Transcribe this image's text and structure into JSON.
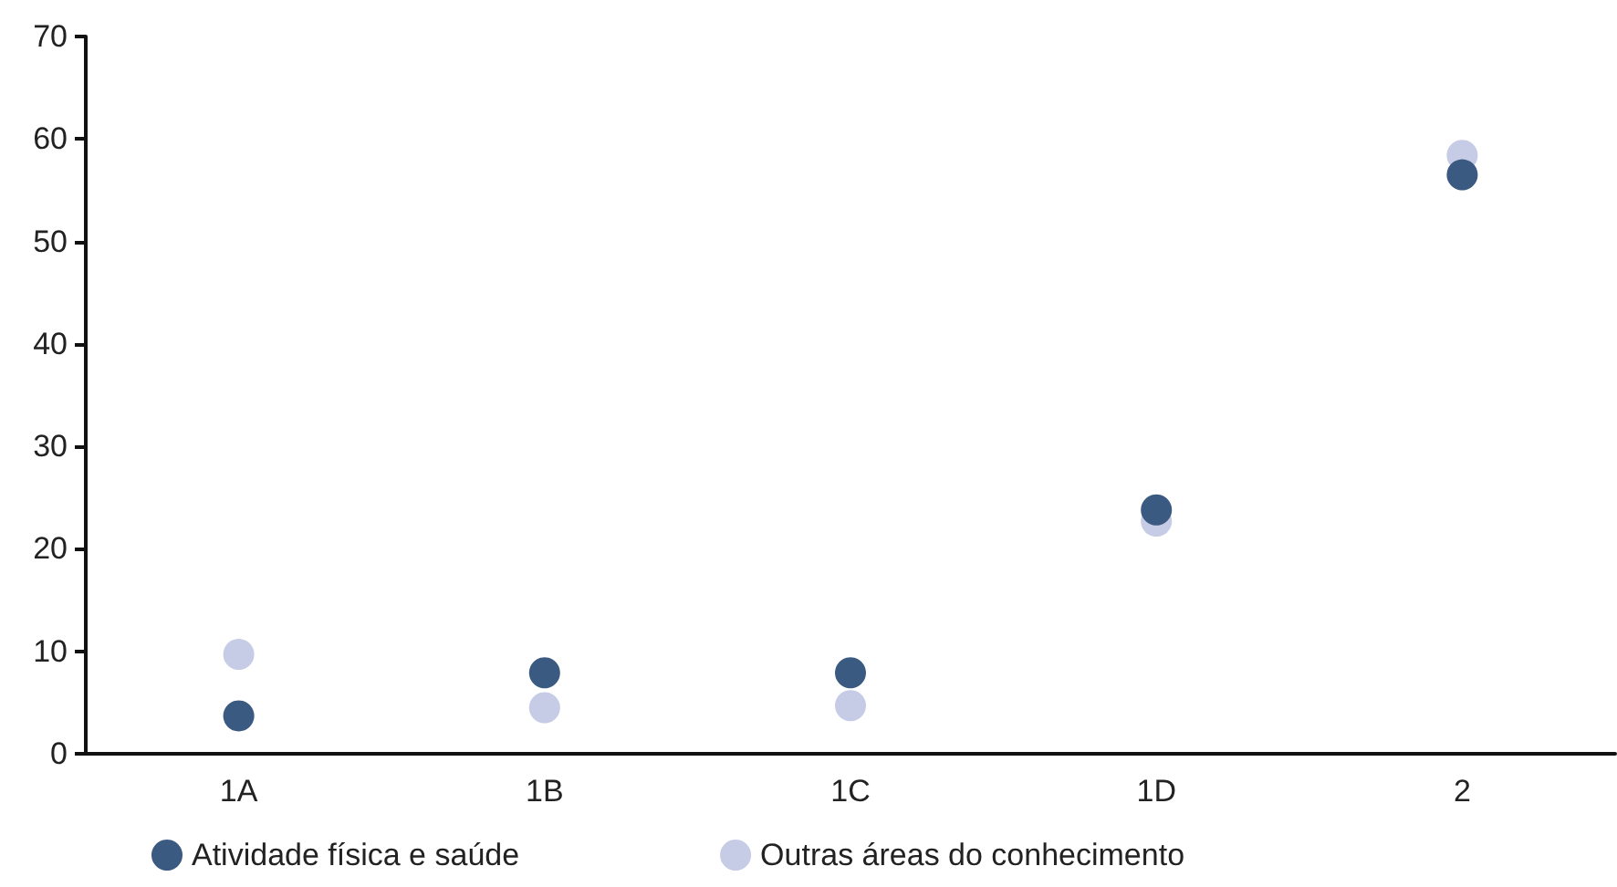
{
  "chart_data": {
    "type": "scatter",
    "categories": [
      "1A",
      "1B",
      "1C",
      "1D",
      "2"
    ],
    "series": [
      {
        "name": "Atividade física e saúde",
        "color": "#3b5a82",
        "values": [
          3.7,
          7.9,
          7.9,
          23.8,
          56.5
        ]
      },
      {
        "name": "Outras áreas do conhecimento",
        "color": "#c6cbe6",
        "values": [
          9.7,
          4.5,
          4.7,
          22.7,
          58.4
        ]
      }
    ],
    "ylim": [
      0,
      70
    ],
    "yticks": [
      0,
      10,
      20,
      30,
      40,
      50,
      60,
      70
    ],
    "grid": false,
    "legend": "bottom left",
    "marker": "circle"
  }
}
